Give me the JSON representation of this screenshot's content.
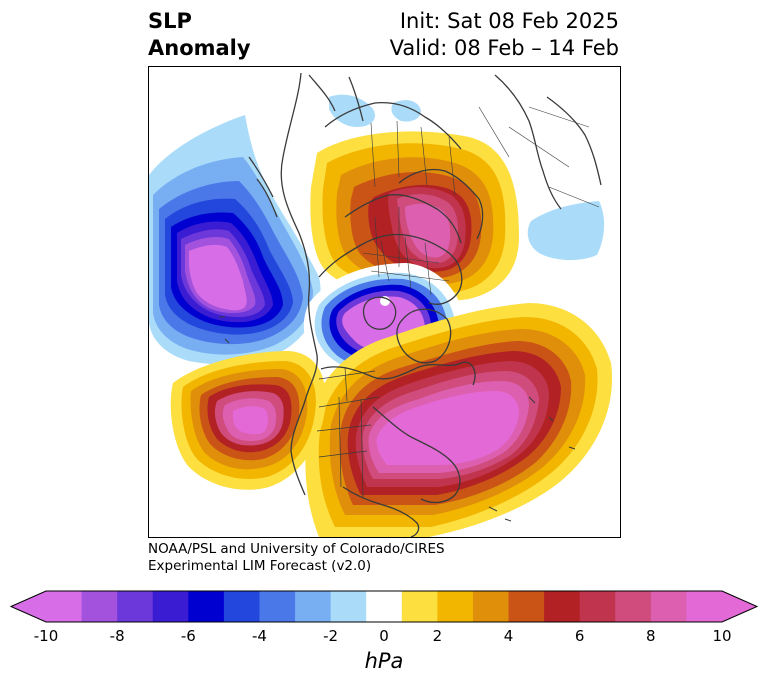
{
  "header": {
    "title_line1": "SLP",
    "title_line2": "Anomaly",
    "init": "Init: Sat 08 Feb 2025",
    "valid": "Valid: 08 Feb – 14 Feb"
  },
  "credit": {
    "line1": "NOAA/PSL and University of Colorado/CIRES",
    "line2": "Experimental LIM Forecast (v2.0)"
  },
  "colorbar": {
    "unit": "hPa",
    "ticks": [
      "-10",
      "-8",
      "-6",
      "-4",
      "-2",
      "0",
      "2",
      "4",
      "6",
      "8",
      "10"
    ],
    "levels": [
      -10,
      -9,
      -8,
      -7,
      -6,
      -5,
      -4,
      -3,
      -2,
      -1,
      1,
      2,
      3,
      4,
      5,
      6,
      7,
      8,
      9,
      10
    ],
    "colors": [
      "#d76ee8",
      "#a352de",
      "#6c38da",
      "#3a1dd2",
      "#0000d0",
      "#2346dc",
      "#4a78e8",
      "#78aef2",
      "#aadcfa",
      "#ffffff",
      "#fddf40",
      "#f2b600",
      "#e08f0a",
      "#c95416",
      "#b22224",
      "#c0354d",
      "#cf4c7d",
      "#dc60af",
      "#e36ad6"
    ],
    "extend_low_color": "#d76ee8",
    "extend_high_color": "#e36ad6"
  },
  "map": {
    "projection": "polar stereographic (North Pole)",
    "field": "sea level pressure anomaly",
    "features": {
      "negative_centers": [
        "North Pacific",
        "Arctic Ocean"
      ],
      "positive_centers": [
        "northern Europe",
        "western Atlantic / eastern United States",
        "subtropical central Pacific"
      ]
    }
  }
}
